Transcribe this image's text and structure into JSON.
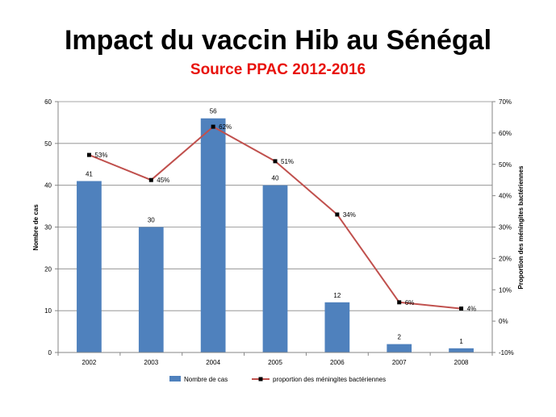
{
  "slide": {
    "title": "Impact du vaccin Hib au Sénégal",
    "subtitle": "Source PPAC 2012-2016",
    "subtitle_color": "#e8120c"
  },
  "chart_data": {
    "type": "bar",
    "categories": [
      "2002",
      "2003",
      "2004",
      "2005",
      "2006",
      "2007",
      "2008"
    ],
    "series": [
      {
        "name": "Nombre de cas",
        "type": "bar",
        "axis": "left",
        "color": "#4f81bd",
        "values": [
          41,
          30,
          56,
          40,
          12,
          2,
          1
        ],
        "labels": [
          "41",
          "30",
          "56",
          "40",
          "12",
          "2",
          "1"
        ]
      },
      {
        "name": "proportion des méningites bactériennes",
        "type": "line",
        "axis": "right",
        "color": "#c0504d",
        "marker_color": "#000000",
        "values": [
          53,
          45,
          62,
          51,
          34,
          6,
          4
        ],
        "labels": [
          "53%",
          "45%",
          "62%",
          "51%",
          "34%",
          "6%",
          "4%"
        ]
      }
    ],
    "ylabel": "Nombre de cas",
    "y2label": "Proportion des méningites bactériennes",
    "ylim": [
      0,
      60
    ],
    "y_ticks": [
      "0",
      "10",
      "20",
      "30",
      "40",
      "50",
      "60"
    ],
    "y2lim": [
      -10,
      70
    ],
    "y2_ticks": [
      "-10%",
      "0%",
      "10%",
      "20%",
      "30%",
      "40%",
      "50%",
      "60%",
      "70%"
    ],
    "grid": true,
    "legend_position": "bottom"
  }
}
